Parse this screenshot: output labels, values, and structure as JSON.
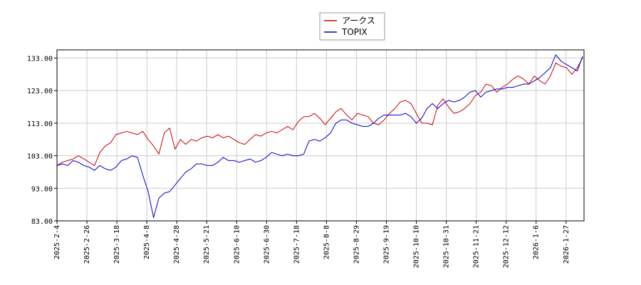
{
  "chart_data": {
    "type": "line",
    "title": "",
    "xlabel": "",
    "ylabel": "",
    "ylim": [
      83.0,
      135.5
    ],
    "y_ticks": [
      "83.00",
      "93.00",
      "103.00",
      "113.00",
      "123.00",
      "133.00"
    ],
    "x_ticks": [
      "2025-2-4",
      "2025-2-26",
      "2025-3-18",
      "2025-4-8",
      "2025-4-28",
      "2025-5-21",
      "2025-6-10",
      "2025-6-30",
      "2025-7-18",
      "2025-8-8",
      "2025-8-29",
      "2025-9-19",
      "2025-10-10",
      "2025-10-31",
      "2025-11-21",
      "2025-12-12",
      "2026-1-6",
      "2026-1-27"
    ],
    "grid": true,
    "legend_placement": "top-center",
    "series": [
      {
        "name": "アークス",
        "color": "#cc0000",
        "values": [
          100.0,
          101.0,
          101.5,
          102.0,
          103.0,
          102.0,
          101.0,
          100.0,
          104.0,
          106.0,
          107.0,
          109.5,
          110.0,
          110.5,
          110.0,
          109.5,
          110.5,
          108.0,
          106.0,
          103.5,
          110.0,
          111.5,
          105.0,
          108.0,
          106.5,
          108.0,
          107.5,
          108.5,
          109.0,
          108.5,
          109.5,
          108.5,
          109.0,
          108.0,
          107.0,
          106.5,
          108.0,
          109.5,
          109.0,
          110.0,
          110.5,
          110.0,
          111.0,
          112.0,
          111.0,
          113.5,
          115.0,
          115.0,
          116.0,
          114.5,
          112.5,
          114.5,
          116.5,
          117.5,
          115.5,
          114.0,
          116.0,
          115.5,
          115.0,
          113.0,
          112.5,
          114.0,
          116.0,
          117.5,
          119.5,
          120.0,
          119.0,
          116.0,
          113.0,
          113.0,
          112.5,
          118.5,
          120.5,
          118.0,
          116.0,
          116.5,
          117.5,
          119.0,
          121.5,
          122.5,
          125.0,
          124.5,
          122.5,
          124.0,
          125.0,
          126.5,
          127.5,
          126.5,
          125.0,
          127.5,
          126.0,
          125.0,
          127.5,
          131.5,
          130.5,
          130.0,
          128.0,
          130.0,
          133.0
        ]
      },
      {
        "name": "TOPIX",
        "color": "#0000cc",
        "values": [
          100.0,
          100.5,
          100.0,
          101.5,
          101.0,
          100.0,
          99.5,
          98.5,
          100.0,
          99.0,
          98.5,
          99.5,
          101.5,
          102.0,
          103.0,
          102.5,
          97.0,
          92.0,
          84.0,
          90.0,
          91.5,
          92.0,
          94.0,
          96.0,
          98.0,
          99.0,
          100.5,
          100.5,
          100.0,
          100.0,
          101.0,
          102.5,
          101.5,
          101.5,
          101.0,
          101.5,
          102.0,
          101.0,
          101.5,
          102.5,
          104.0,
          103.5,
          103.0,
          103.5,
          103.0,
          103.0,
          103.5,
          107.5,
          108.0,
          107.5,
          108.5,
          110.0,
          113.0,
          114.0,
          114.0,
          113.0,
          112.5,
          112.0,
          112.0,
          113.0,
          114.5,
          115.5,
          115.5,
          115.5,
          115.5,
          116.0,
          115.0,
          113.0,
          114.5,
          117.5,
          119.0,
          117.5,
          119.0,
          120.0,
          119.5,
          120.0,
          121.0,
          122.5,
          123.0,
          121.0,
          122.5,
          123.0,
          123.5,
          123.5,
          124.0,
          124.0,
          124.5,
          125.0,
          125.0,
          126.0,
          127.0,
          128.5,
          130.0,
          134.0,
          132.0,
          131.0,
          130.0,
          129.0,
          133.5
        ]
      }
    ]
  }
}
